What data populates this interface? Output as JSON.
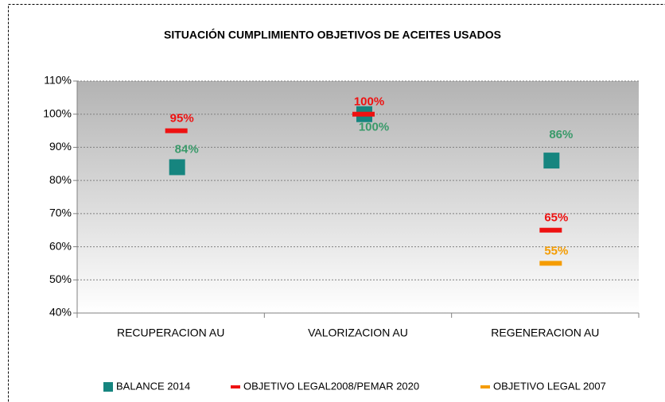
{
  "chart_data": {
    "type": "dotplot",
    "title": "SITUACIÓN CUMPLIMIENTO OBJETIVOS DE ACEITES USADOS",
    "categories": [
      "RECUPERACION AU",
      "VALORIZACION AU",
      "REGENERACION AU"
    ],
    "series": [
      {
        "name": "BALANCE 2014",
        "color": "#16857f",
        "marker": "square",
        "label_color": "#3a9a6a",
        "values": [
          84,
          100,
          86
        ],
        "value_labels": [
          "84%",
          "100%",
          "86%"
        ]
      },
      {
        "name": "OBJETIVO LEGAL2008/PEMAR 2020",
        "color": "#ee1111",
        "marker": "dash",
        "label_color": "#ee1111",
        "values": [
          95,
          100,
          65
        ],
        "value_labels": [
          "95%",
          "100%",
          "65%"
        ]
      },
      {
        "name": "OBJETIVO LEGAL 2007",
        "color": "#f59c00",
        "marker": "dash",
        "label_color": "#f59c00",
        "values": [
          null,
          null,
          55
        ],
        "value_labels": [
          null,
          null,
          "55%"
        ]
      }
    ],
    "ylim": [
      40,
      110
    ],
    "yticks": [
      {
        "value": 40,
        "label": "40%"
      },
      {
        "value": 50,
        "label": "50%"
      },
      {
        "value": 60,
        "label": "60%"
      },
      {
        "value": 70,
        "label": "70%"
      },
      {
        "value": 80,
        "label": "80%"
      },
      {
        "value": 90,
        "label": "90%"
      },
      {
        "value": 100,
        "label": "100%"
      },
      {
        "value": 110,
        "label": "110%"
      }
    ],
    "grid": true,
    "legend": "bottom"
  }
}
